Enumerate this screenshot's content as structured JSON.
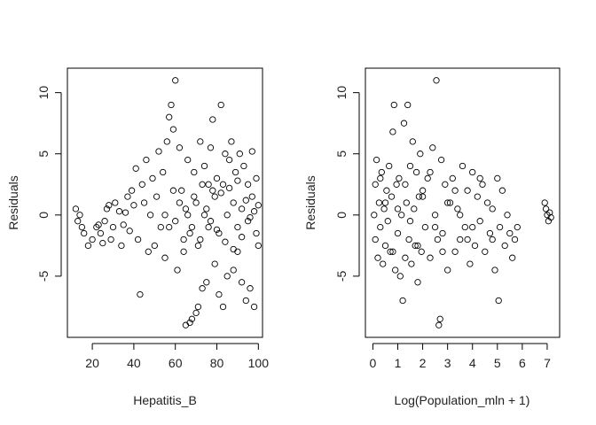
{
  "chart_data": [
    {
      "type": "scatter",
      "title": "",
      "xlabel": "Hepatitis_B",
      "ylabel": "Residuals",
      "xlim": [
        8,
        102
      ],
      "ylim": [
        -10,
        12
      ],
      "xticks": [
        20,
        40,
        60,
        80,
        100
      ],
      "xtick_labels": [
        "20",
        "40",
        "60",
        "80",
        "100"
      ],
      "yticks": [
        -5,
        0,
        5,
        10
      ],
      "ytick_labels": [
        "-5",
        "0",
        "5",
        "10"
      ],
      "marker": "open-circle",
      "grid": false,
      "points": [
        [
          12,
          0.5
        ],
        [
          13,
          -0.5
        ],
        [
          14,
          0.0
        ],
        [
          15,
          -1.0
        ],
        [
          16,
          -1.5
        ],
        [
          18,
          -2.5
        ],
        [
          20,
          -2.0
        ],
        [
          22,
          -1.0
        ],
        [
          23,
          -0.8
        ],
        [
          24,
          -1.5
        ],
        [
          25,
          -2.3
        ],
        [
          26,
          -0.5
        ],
        [
          27,
          0.5
        ],
        [
          28,
          0.8
        ],
        [
          29,
          -2.0
        ],
        [
          30,
          -1.0
        ],
        [
          31,
          1.0
        ],
        [
          33,
          0.3
        ],
        [
          34,
          -2.5
        ],
        [
          35,
          -0.8
        ],
        [
          36,
          0.2
        ],
        [
          37,
          1.5
        ],
        [
          38,
          -1.3
        ],
        [
          39,
          2.0
        ],
        [
          40,
          0.8
        ],
        [
          41,
          3.8
        ],
        [
          42,
          -2.0
        ],
        [
          43,
          -6.5
        ],
        [
          44,
          2.5
        ],
        [
          45,
          1.0
        ],
        [
          46,
          4.5
        ],
        [
          47,
          -3.0
        ],
        [
          48,
          0.0
        ],
        [
          49,
          3.0
        ],
        [
          50,
          -2.5
        ],
        [
          51,
          1.5
        ],
        [
          52,
          5.2
        ],
        [
          53,
          -1.0
        ],
        [
          54,
          3.5
        ],
        [
          55,
          -3.5
        ],
        [
          56,
          6.0
        ],
        [
          57,
          8.0
        ],
        [
          58,
          9.0
        ],
        [
          59,
          7.0
        ],
        [
          60,
          11.0
        ],
        [
          61,
          -4.5
        ],
        [
          62,
          5.5
        ],
        [
          63,
          2.0
        ],
        [
          64,
          -3.0
        ],
        [
          65,
          -9.0
        ],
        [
          66,
          4.5
        ],
        [
          67,
          -8.8
        ],
        [
          68,
          -8.5
        ],
        [
          69,
          3.5
        ],
        [
          70,
          -8.0
        ],
        [
          71,
          -7.5
        ],
        [
          72,
          6.0
        ],
        [
          73,
          -6.0
        ],
        [
          74,
          4.0
        ],
        [
          75,
          -5.5
        ],
        [
          76,
          2.5
        ],
        [
          77,
          5.5
        ],
        [
          78,
          7.8
        ],
        [
          79,
          -4.0
        ],
        [
          80,
          3.0
        ],
        [
          81,
          -6.5
        ],
        [
          82,
          9.0
        ],
        [
          83,
          -7.5
        ],
        [
          84,
          5.0
        ],
        [
          85,
          -5.0
        ],
        [
          86,
          4.5
        ],
        [
          87,
          6.0
        ],
        [
          88,
          -4.5
        ],
        [
          89,
          3.5
        ],
        [
          90,
          -3.0
        ],
        [
          91,
          5.0
        ],
        [
          92,
          -5.5
        ],
        [
          93,
          4.0
        ],
        [
          94,
          -7.0
        ],
        [
          95,
          2.5
        ],
        [
          96,
          -6.0
        ],
        [
          97,
          5.2
        ],
        [
          98,
          -7.5
        ],
        [
          99,
          3.0
        ],
        [
          100,
          -2.5
        ],
        [
          85,
          0.0
        ],
        [
          88,
          1.0
        ],
        [
          90,
          -1.0
        ],
        [
          92,
          0.5
        ],
        [
          95,
          -0.5
        ],
        [
          97,
          1.5
        ],
        [
          99,
          -1.5
        ],
        [
          100,
          0.8
        ],
        [
          80,
          -1.2
        ],
        [
          82,
          1.8
        ],
        [
          84,
          -2.2
        ],
        [
          86,
          2.2
        ],
        [
          88,
          -2.8
        ],
        [
          90,
          2.8
        ],
        [
          92,
          -1.8
        ],
        [
          94,
          1.2
        ],
        [
          96,
          -0.2
        ],
        [
          98,
          0.3
        ],
        [
          75,
          0.5
        ],
        [
          77,
          -0.5
        ],
        [
          79,
          1.5
        ],
        [
          81,
          -1.5
        ],
        [
          83,
          2.5
        ],
        [
          70,
          1.0
        ],
        [
          72,
          -2.0
        ],
        [
          74,
          0.0
        ],
        [
          76,
          -1.0
        ],
        [
          78,
          2.0
        ],
        [
          65,
          0.5
        ],
        [
          67,
          -1.5
        ],
        [
          69,
          1.5
        ],
        [
          71,
          -2.5
        ],
        [
          73,
          2.5
        ],
        [
          60,
          -0.5
        ],
        [
          62,
          1.0
        ],
        [
          64,
          -2.0
        ],
        [
          66,
          0.0
        ],
        [
          68,
          -1.0
        ],
        [
          55,
          0.0
        ],
        [
          57,
          -1.0
        ],
        [
          59,
          2.0
        ]
      ]
    },
    {
      "type": "scatter",
      "title": "",
      "xlabel": "Log(Population_mln + 1)",
      "ylabel": "Residuals",
      "xlim": [
        -0.3,
        7.5
      ],
      "ylim": [
        -10,
        12
      ],
      "xticks": [
        0,
        1,
        2,
        3,
        4,
        5,
        6,
        7
      ],
      "xtick_labels": [
        "0",
        "1",
        "2",
        "3",
        "4",
        "5",
        "6",
        "7"
      ],
      "yticks": [
        -5,
        0,
        5,
        10
      ],
      "ytick_labels": [
        "-5",
        "0",
        "5",
        "10"
      ],
      "marker": "open-circle",
      "grid": false,
      "points": [
        [
          0.05,
          0.0
        ],
        [
          0.1,
          2.5
        ],
        [
          0.1,
          -2.0
        ],
        [
          0.15,
          4.5
        ],
        [
          0.2,
          -3.5
        ],
        [
          0.25,
          1.0
        ],
        [
          0.3,
          -1.0
        ],
        [
          0.35,
          3.5
        ],
        [
          0.4,
          -4.0
        ],
        [
          0.45,
          0.5
        ],
        [
          0.5,
          -2.5
        ],
        [
          0.55,
          2.0
        ],
        [
          0.6,
          -0.5
        ],
        [
          0.65,
          4.0
        ],
        [
          0.7,
          -3.0
        ],
        [
          0.75,
          1.5
        ],
        [
          0.8,
          6.8
        ],
        [
          0.85,
          9.0
        ],
        [
          0.9,
          -4.5
        ],
        [
          0.95,
          2.5
        ],
        [
          1.0,
          -1.5
        ],
        [
          1.05,
          3.0
        ],
        [
          1.1,
          -5.0
        ],
        [
          1.15,
          0.0
        ],
        [
          1.2,
          -7.0
        ],
        [
          1.25,
          7.5
        ],
        [
          1.3,
          -3.5
        ],
        [
          1.35,
          1.0
        ],
        [
          1.4,
          9.0
        ],
        [
          1.45,
          -2.0
        ],
        [
          1.5,
          4.0
        ],
        [
          1.55,
          -4.0
        ],
        [
          1.6,
          6.0
        ],
        [
          1.65,
          0.5
        ],
        [
          1.7,
          -2.5
        ],
        [
          1.75,
          3.5
        ],
        [
          1.8,
          -5.5
        ],
        [
          1.85,
          1.5
        ],
        [
          1.9,
          5.0
        ],
        [
          1.95,
          -3.0
        ],
        [
          2.0,
          2.0
        ],
        [
          2.1,
          -1.0
        ],
        [
          2.2,
          3.0
        ],
        [
          2.3,
          -3.5
        ],
        [
          2.4,
          5.5
        ],
        [
          2.5,
          0.0
        ],
        [
          2.55,
          11.0
        ],
        [
          2.6,
          -2.0
        ],
        [
          2.65,
          -9.0
        ],
        [
          2.7,
          -8.5
        ],
        [
          2.75,
          4.5
        ],
        [
          2.8,
          -1.5
        ],
        [
          2.9,
          2.5
        ],
        [
          3.0,
          -4.5
        ],
        [
          3.1,
          1.0
        ],
        [
          3.2,
          3.0
        ],
        [
          3.3,
          -3.0
        ],
        [
          3.4,
          0.5
        ],
        [
          3.5,
          -2.0
        ],
        [
          3.6,
          4.0
        ],
        [
          3.7,
          -1.0
        ],
        [
          3.8,
          2.0
        ],
        [
          3.9,
          -4.0
        ],
        [
          4.0,
          3.5
        ],
        [
          4.1,
          -2.5
        ],
        [
          4.2,
          1.5
        ],
        [
          4.3,
          -0.5
        ],
        [
          4.4,
          2.5
        ],
        [
          4.5,
          -3.0
        ],
        [
          4.6,
          1.0
        ],
        [
          4.7,
          -1.5
        ],
        [
          4.8,
          0.5
        ],
        [
          4.9,
          -4.5
        ],
        [
          5.0,
          3.0
        ],
        [
          5.05,
          -7.0
        ],
        [
          5.1,
          -1.0
        ],
        [
          5.2,
          2.0
        ],
        [
          5.3,
          -2.5
        ],
        [
          5.4,
          0.0
        ],
        [
          5.5,
          -1.5
        ],
        [
          5.6,
          -3.5
        ],
        [
          5.7,
          -2.0
        ],
        [
          5.8,
          -1.0
        ],
        [
          6.9,
          1.0
        ],
        [
          6.95,
          0.5
        ],
        [
          7.0,
          0.0
        ],
        [
          7.05,
          -0.5
        ],
        [
          7.1,
          0.2
        ],
        [
          7.15,
          -0.2
        ],
        [
          0.5,
          1.0
        ],
        [
          1.0,
          0.5
        ],
        [
          1.5,
          -0.5
        ],
        [
          2.0,
          1.5
        ],
        [
          2.5,
          -1.0
        ],
        [
          3.0,
          1.0
        ],
        [
          3.5,
          0.0
        ],
        [
          4.0,
          -1.0
        ],
        [
          0.3,
          3.0
        ],
        [
          0.8,
          -3.0
        ],
        [
          1.3,
          2.5
        ],
        [
          1.8,
          -2.5
        ],
        [
          2.3,
          3.5
        ],
        [
          2.8,
          -3.0
        ],
        [
          3.3,
          2.0
        ],
        [
          3.8,
          -2.0
        ],
        [
          4.3,
          3.0
        ],
        [
          4.8,
          -2.0
        ]
      ]
    }
  ]
}
